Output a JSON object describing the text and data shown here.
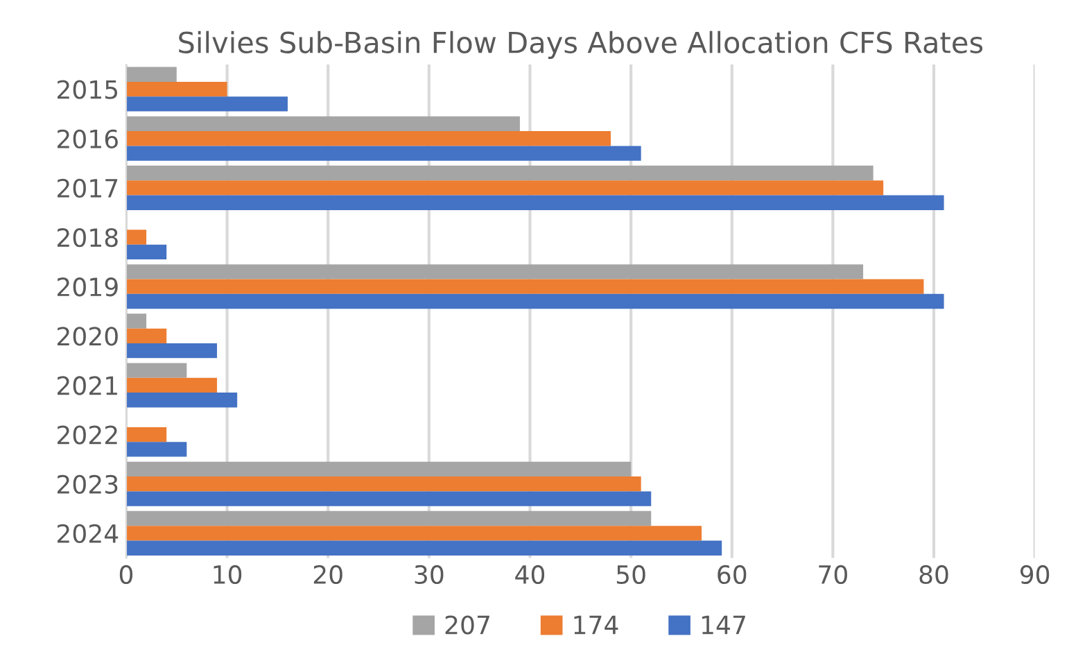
{
  "chart_data": {
    "type": "bar",
    "orientation": "horizontal",
    "title": "Silvies Sub-Basin Flow Days Above Allocation CFS Rates",
    "categories": [
      "2015",
      "2016",
      "2017",
      "2018",
      "2019",
      "2020",
      "2021",
      "2022",
      "2023",
      "2024"
    ],
    "series": [
      {
        "name": "207",
        "color": "#a5a5a5",
        "values": [
          5,
          39,
          74,
          0,
          73,
          2,
          6,
          0,
          50,
          52
        ]
      },
      {
        "name": "174",
        "color": "#ed7d31",
        "values": [
          10,
          48,
          75,
          2,
          79,
          4,
          9,
          4,
          51,
          57
        ]
      },
      {
        "name": "147",
        "color": "#4472c4",
        "values": [
          16,
          51,
          81,
          4,
          81,
          9,
          11,
          6,
          52,
          59
        ]
      }
    ],
    "xlim": [
      0,
      90
    ],
    "xticks": [
      0,
      10,
      20,
      30,
      40,
      50,
      60,
      70,
      80,
      90
    ],
    "grid": "x",
    "legend": "bottom"
  }
}
